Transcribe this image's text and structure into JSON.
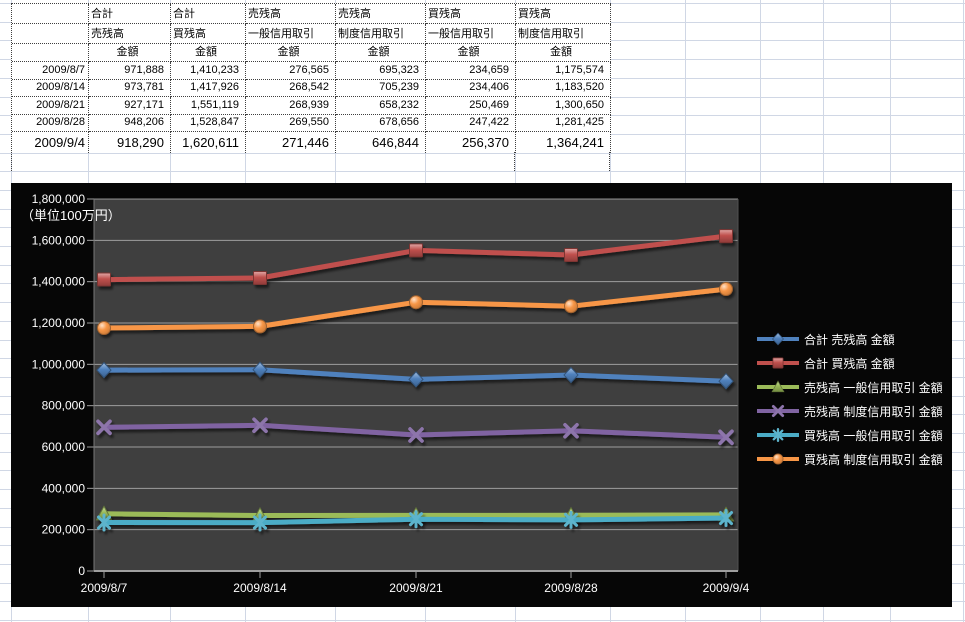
{
  "sheet": {
    "table": {
      "header_row1": [
        "",
        "合計",
        "合計",
        "売残高",
        "売残高",
        "買残高",
        "買残高"
      ],
      "header_row2": [
        "",
        "売残高",
        "買残高",
        "一般信用取引",
        "制度信用取引",
        "一般信用取引",
        "制度信用取引"
      ],
      "header_row3": [
        "",
        "金額",
        "金額",
        "金額",
        "金額",
        "金額",
        "金額"
      ],
      "rows": [
        {
          "date": "2009/8/7",
          "values": [
            "971,888",
            "1,410,233",
            "276,565",
            "695,323",
            "234,659",
            "1,175,574"
          ]
        },
        {
          "date": "2009/8/14",
          "values": [
            "973,781",
            "1,417,926",
            "268,542",
            "705,239",
            "234,406",
            "1,183,520"
          ]
        },
        {
          "date": "2009/8/21",
          "values": [
            "927,171",
            "1,551,119",
            "268,939",
            "658,232",
            "250,469",
            "1,300,650"
          ]
        },
        {
          "date": "2009/8/28",
          "values": [
            "948,206",
            "1,528,847",
            "269,550",
            "678,656",
            "247,422",
            "1,281,425"
          ]
        },
        {
          "date": "2009/9/4",
          "values": [
            "918,290",
            "1,620,611",
            "271,446",
            "646,844",
            "256,370",
            "1,364,241"
          ]
        }
      ]
    }
  },
  "chart_data": {
    "type": "line",
    "title": "",
    "unit_label": "（単位100万円）",
    "x": [
      "2009/8/7",
      "2009/8/14",
      "2009/8/21",
      "2009/8/28",
      "2009/9/4"
    ],
    "ylim": [
      0,
      1800000
    ],
    "ytick_step": 200000,
    "grid": true,
    "legend_position": "right",
    "chart_bg": "#060606",
    "plot_bg": "#3f3f3f",
    "gridline_color": "#c8c8c8",
    "text_color": "#ffffff",
    "series": [
      {
        "name": "合計 売残高 金額",
        "color": "#4F81BD",
        "marker": "diamond",
        "values": [
          971888,
          973781,
          927171,
          948206,
          918290
        ]
      },
      {
        "name": "合計 買残高 金額",
        "color": "#C0504D",
        "marker": "square",
        "values": [
          1410233,
          1417926,
          1551119,
          1528847,
          1620611
        ]
      },
      {
        "name": "売残高 一般信用取引 金額",
        "color": "#9BBB59",
        "marker": "triangle",
        "values": [
          276565,
          268542,
          268939,
          269550,
          271446
        ]
      },
      {
        "name": "売残高 制度信用取引 金額",
        "color": "#8064A2",
        "marker": "x",
        "values": [
          695323,
          705239,
          658232,
          678656,
          646844
        ]
      },
      {
        "name": "買残高 一般信用取引 金額",
        "color": "#4BACC6",
        "marker": "asterisk",
        "values": [
          234659,
          234406,
          250469,
          247422,
          256370
        ]
      },
      {
        "name": "買残高 制度信用取引 金額",
        "color": "#F79646",
        "marker": "circle",
        "values": [
          1175574,
          1183520,
          1300650,
          1281425,
          1364241
        ]
      }
    ]
  }
}
